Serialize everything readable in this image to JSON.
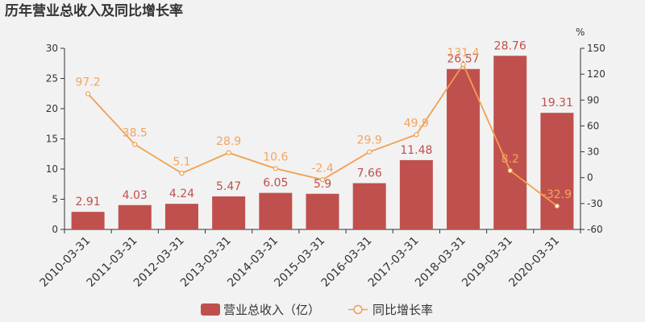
{
  "colors": {
    "bar": "#c0504d",
    "line": "#f4a460",
    "line_stroke": "#f0a050",
    "axis": "#333333",
    "background": "#f2f2f2"
  },
  "chart_data": {
    "type": "bar",
    "title": "历年营业总收入及同比增长率",
    "categories": [
      "2010-03-31",
      "2011-03-31",
      "2012-03-31",
      "2013-03-31",
      "2014-03-31",
      "2015-03-31",
      "2016-03-31",
      "2017-03-31",
      "2018-03-31",
      "2019-03-31",
      "2020-03-31"
    ],
    "series": [
      {
        "name": "营业总收入（亿）",
        "type": "bar",
        "axis": "left",
        "values": [
          2.91,
          4.03,
          4.24,
          5.47,
          6.05,
          5.9,
          7.66,
          11.48,
          26.57,
          28.76,
          19.31
        ],
        "labels": [
          "2.91",
          "4.03",
          "4.24",
          "5.47",
          "6.05",
          "5.9",
          "7.66",
          "11.48",
          "26.57",
          "28.76",
          "19.31"
        ]
      },
      {
        "name": "同比增长率",
        "type": "line",
        "axis": "right",
        "values": [
          97.2,
          38.5,
          5.1,
          28.9,
          10.6,
          -2.4,
          29.9,
          49.9,
          131.4,
          8.2,
          -32.9
        ],
        "labels": [
          "97.2",
          "38.5",
          "5.1",
          "28.9",
          "10.6",
          "-2.4",
          "29.9",
          "49.9",
          "131.4",
          "8.2",
          "-32.9"
        ]
      }
    ],
    "y_left": {
      "ylim": [
        0,
        30
      ],
      "ticks": [
        "0",
        "5",
        "10",
        "15",
        "20",
        "25",
        "30"
      ],
      "tick_values": [
        0,
        5,
        10,
        15,
        20,
        25,
        30
      ]
    },
    "y_right": {
      "ylim": [
        -60,
        150
      ],
      "unit": "%",
      "ticks": [
        "-60",
        "-30",
        "0",
        "30",
        "60",
        "90",
        "120",
        "150"
      ],
      "tick_values": [
        -60,
        -30,
        0,
        30,
        60,
        90,
        120,
        150
      ]
    },
    "legend": {
      "position": "bottom",
      "items": [
        "营业总收入（亿）",
        "同比增长率"
      ]
    },
    "grid": false
  }
}
